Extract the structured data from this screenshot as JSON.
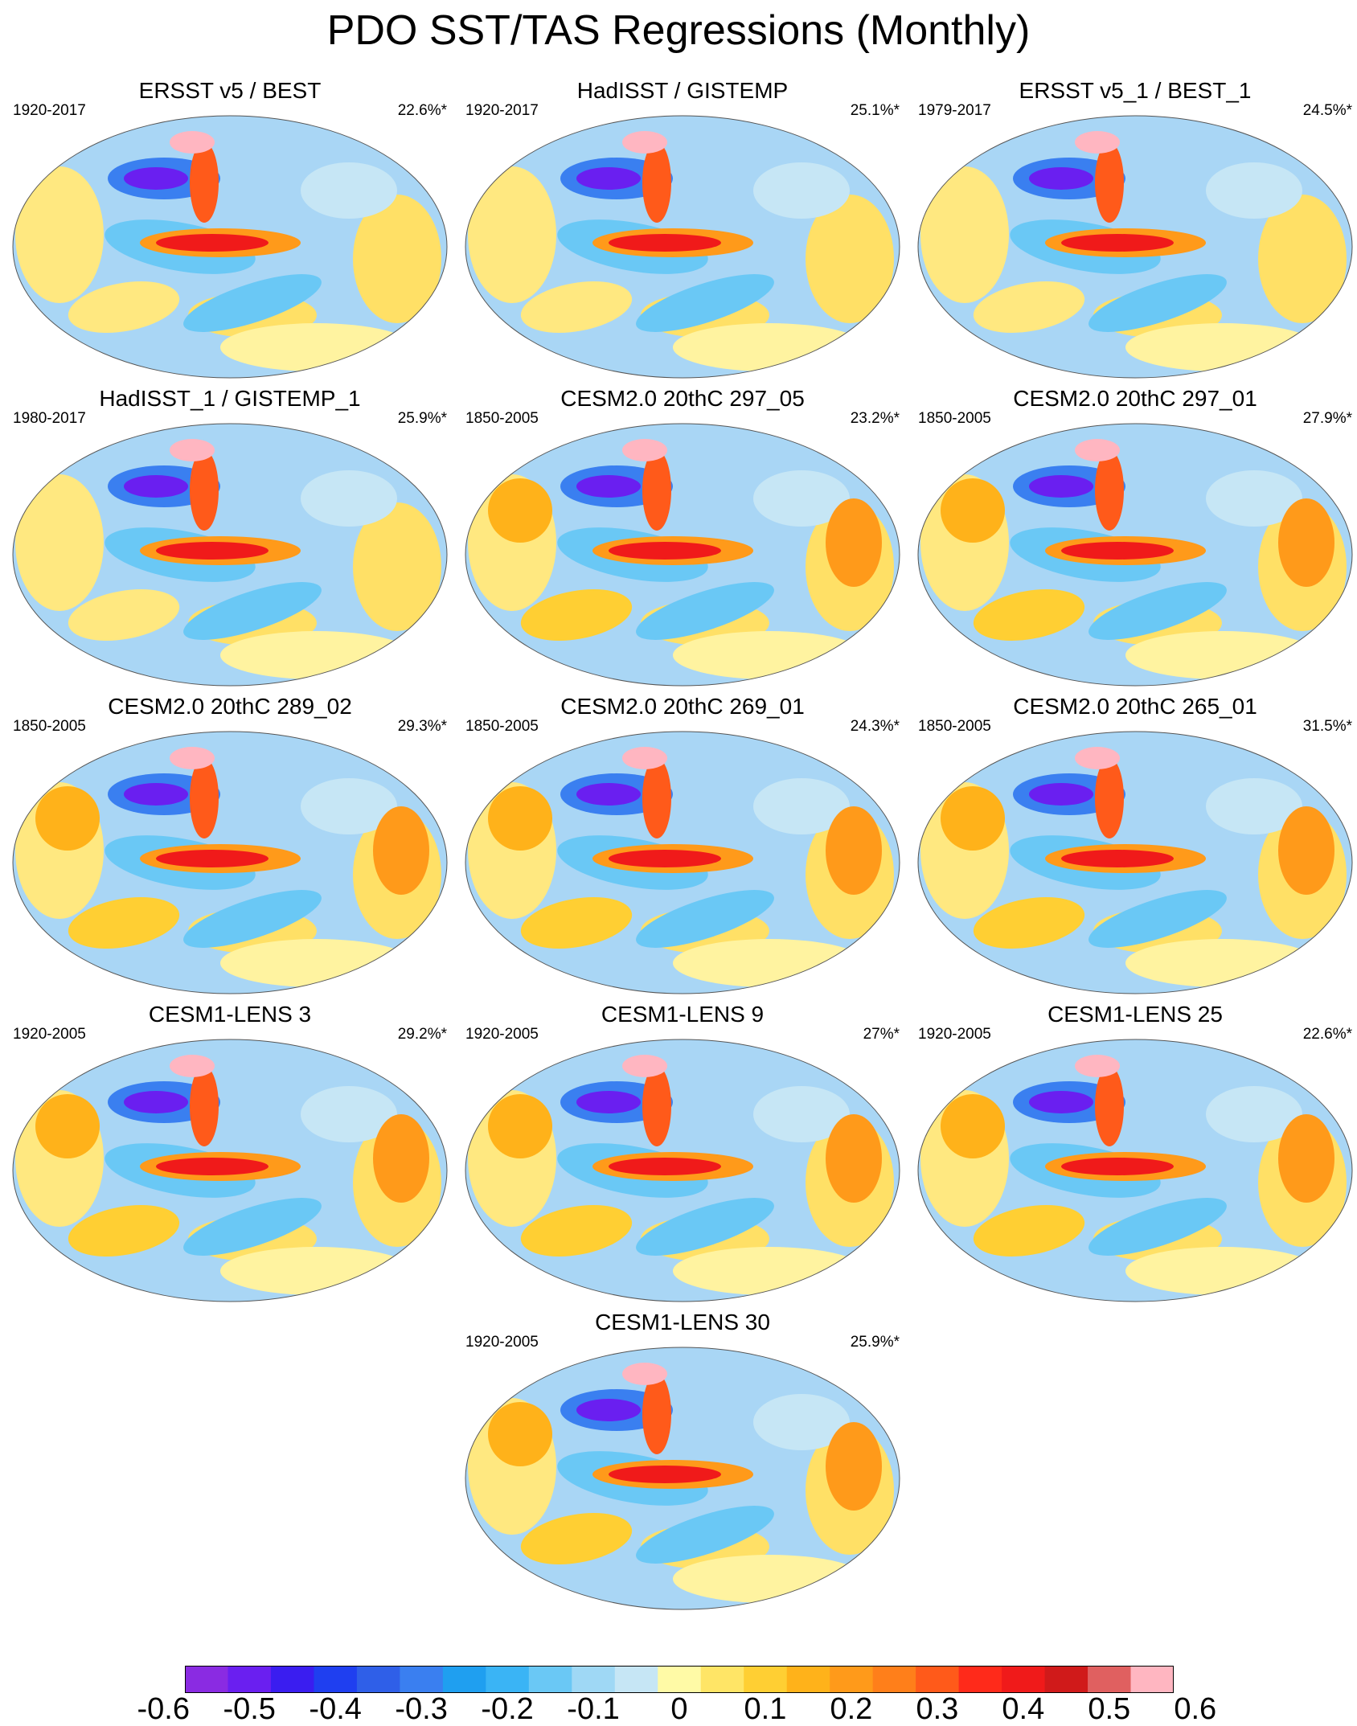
{
  "title": "PDO SST/TAS Regressions (Monthly)",
  "panels": [
    {
      "title": "ERSST v5 / BEST",
      "years": "1920-2017",
      "pct": "22.6%*"
    },
    {
      "title": "HadISST / GISTEMP",
      "years": "1920-2017",
      "pct": "25.1%*"
    },
    {
      "title": "ERSST v5_1 / BEST_1",
      "years": "1979-2017",
      "pct": "24.5%*"
    },
    {
      "title": "HadISST_1 / GISTEMP_1",
      "years": "1980-2017",
      "pct": "25.9%*"
    },
    {
      "title": "CESM2.0 20thC 297_05",
      "years": "1850-2005",
      "pct": "23.2%*"
    },
    {
      "title": "CESM2.0 20thC 297_01",
      "years": "1850-2005",
      "pct": "27.9%*"
    },
    {
      "title": "CESM2.0 20thC 289_02",
      "years": "1850-2005",
      "pct": "29.3%*"
    },
    {
      "title": "CESM2.0 20thC 269_01",
      "years": "1850-2005",
      "pct": "24.3%*"
    },
    {
      "title": "CESM2.0 20thC 265_01",
      "years": "1850-2005",
      "pct": "31.5%*"
    },
    {
      "title": "CESM1-LENS 3",
      "years": "1920-2005",
      "pct": "29.2%*"
    },
    {
      "title": "CESM1-LENS 9",
      "years": "1920-2005",
      "pct": "27%*"
    },
    {
      "title": "CESM1-LENS 25",
      "years": "1920-2005",
      "pct": "22.6%*"
    },
    {
      "title": "CESM1-LENS 30",
      "years": "1920-2005",
      "pct": "25.9%*"
    }
  ],
  "colorbar": {
    "labels": [
      "-0.6",
      "-0.5",
      "-0.4",
      "-0.3",
      "-0.2",
      "-0.1",
      "0",
      "0.1",
      "0.2",
      "0.3",
      "0.4",
      "0.5",
      "0.6"
    ],
    "colors": [
      "#8a2be2",
      "#6a1ff0",
      "#3a1df0",
      "#1f3ff0",
      "#2f5fe8",
      "#3a7ff0",
      "#1f9ff0",
      "#3ab4f5",
      "#6ac8f5",
      "#9fd8f5",
      "#c6e6f5",
      "#fffaa6",
      "#ffe566",
      "#ffcf33",
      "#ffb21a",
      "#ff9a1a",
      "#ff7f1a",
      "#ff5a1a",
      "#ff2a1a",
      "#f01a1a",
      "#d01a1a",
      "#e06060",
      "#ffb6c1"
    ]
  }
}
